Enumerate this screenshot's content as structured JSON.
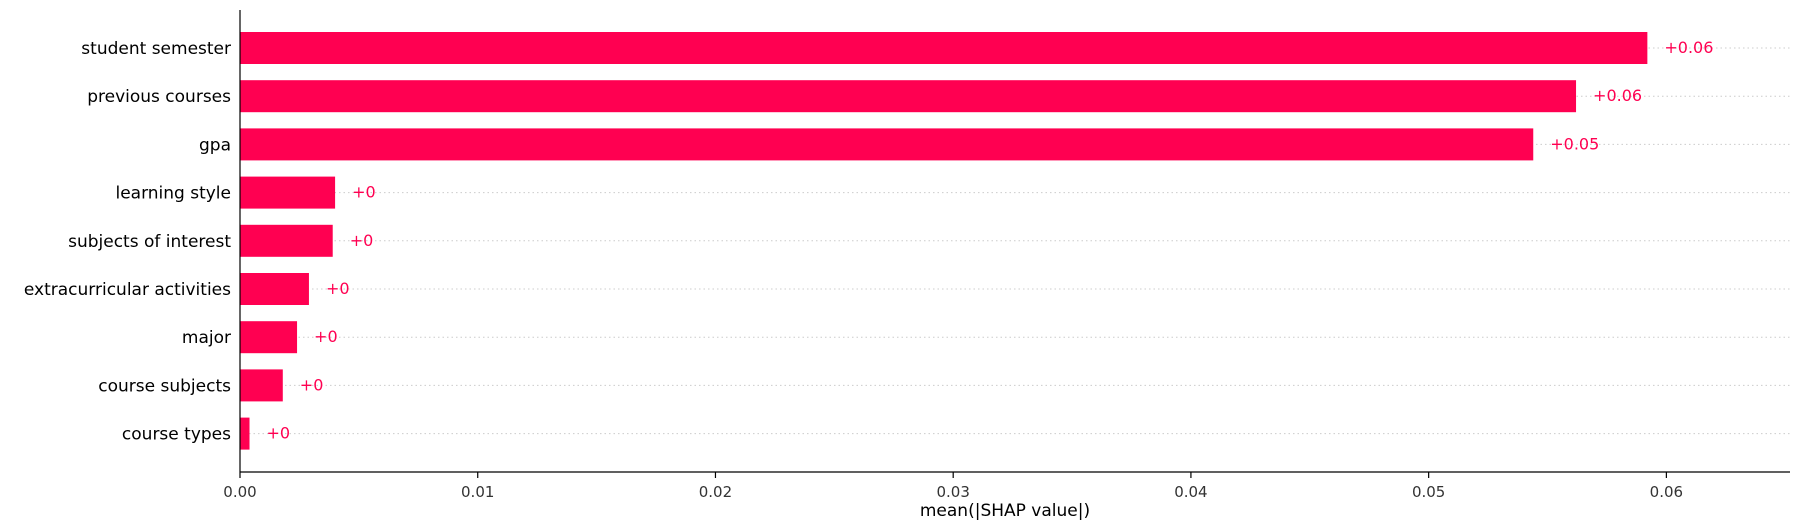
{
  "chart_data": {
    "type": "bar",
    "orientation": "horizontal",
    "categories": [
      "student semester",
      "previous courses",
      "gpa",
      "learning style",
      "subjects of interest",
      "extracurricular activities",
      "major",
      "course subjects",
      "course types"
    ],
    "values": [
      0.0592,
      0.0562,
      0.0544,
      0.004,
      0.0039,
      0.0029,
      0.0024,
      0.0018,
      0.0004
    ],
    "value_labels": [
      "+0.06",
      "+0.06",
      "+0.05",
      "+0",
      "+0",
      "+0",
      "+0",
      "+0",
      "+0"
    ],
    "xlabel": "mean(|SHAP value|)",
    "ylabel": "",
    "xlim": [
      0,
      0.0652
    ],
    "xticks": [
      0.0,
      0.01,
      0.02,
      0.03,
      0.04,
      0.05,
      0.06
    ],
    "xtick_labels": [
      "0.00",
      "0.01",
      "0.02",
      "0.03",
      "0.04",
      "0.05",
      "0.06"
    ],
    "grid": "dotted horizontal row lines",
    "bar_color": "#ff0051",
    "label_color": "#ff0051"
  }
}
